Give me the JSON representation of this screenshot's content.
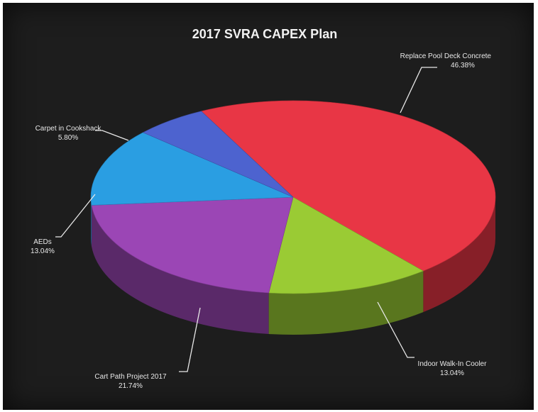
{
  "chart_data": {
    "type": "pie",
    "title": "2017 SVRA CAPEX Plan",
    "slices": [
      {
        "label": "Replace Pool Deck Concrete",
        "value": 46.38,
        "value_label": "46.38%",
        "color": "#e83645"
      },
      {
        "label": "Indoor Walk-In Cooler",
        "value": 13.04,
        "value_label": "13.04%",
        "color": "#9acb34"
      },
      {
        "label": "Cart Path Project 2017",
        "value": 21.74,
        "value_label": "21.74%",
        "color": "#9b46b5"
      },
      {
        "label": "AEDs",
        "value": 13.04,
        "value_label": "13.04%",
        "color": "#2a9ee2"
      },
      {
        "label": "Carpet in Cookshack",
        "value": 5.8,
        "value_label": "5.80%",
        "color": "#4d63cf"
      }
    ],
    "three_d": true,
    "legend": "none"
  }
}
